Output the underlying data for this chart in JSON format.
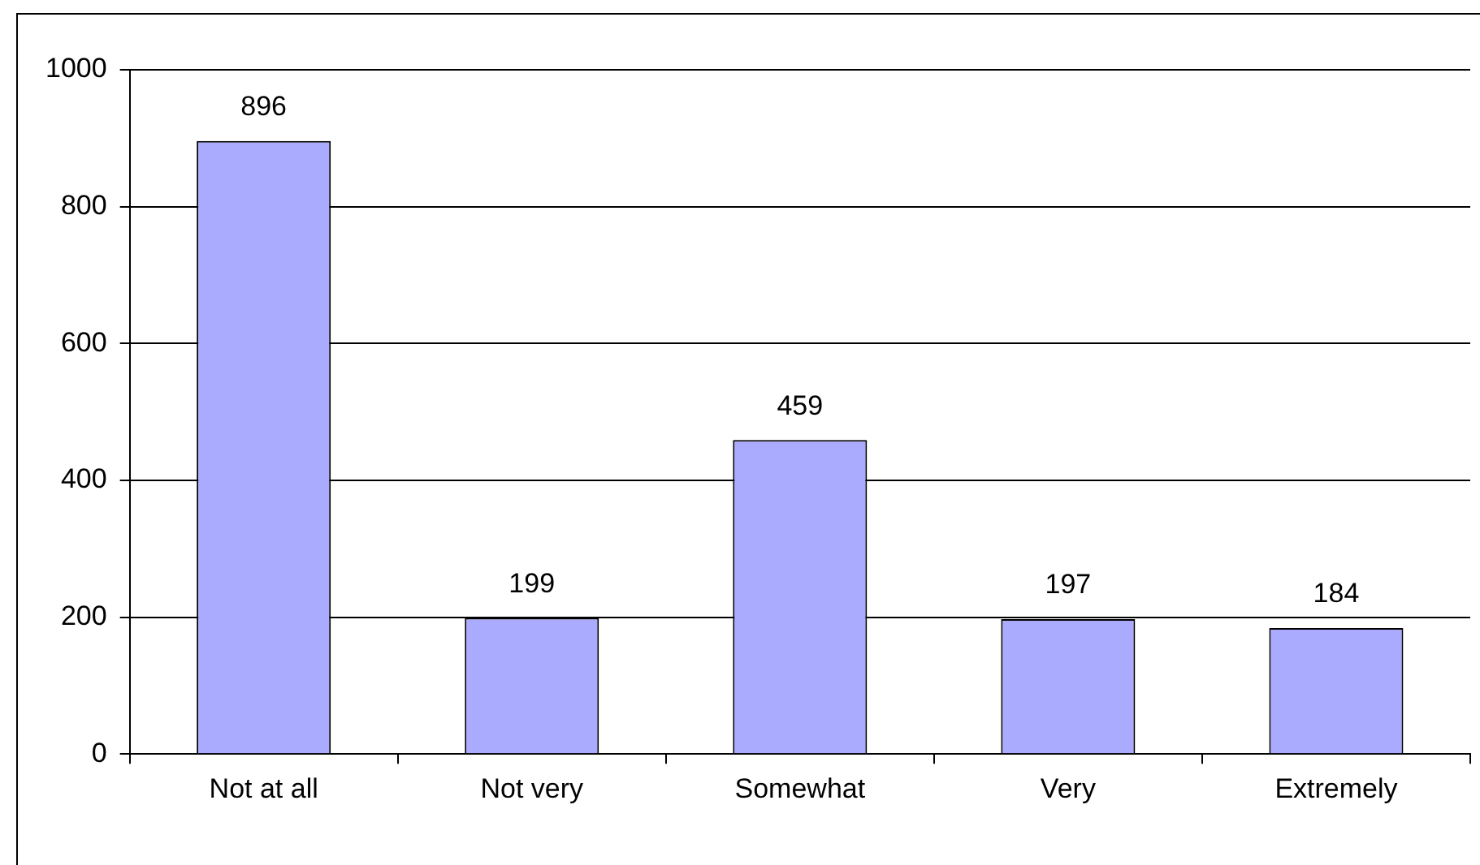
{
  "chart_data": {
    "type": "bar",
    "categories": [
      "Not at all",
      "Not very",
      "Somewhat",
      "Very",
      "Extremely"
    ],
    "values": [
      896,
      199,
      459,
      197,
      184
    ],
    "color": "#aaaaff",
    "ylim": [
      0,
      1000
    ],
    "yticks": [
      0,
      200,
      400,
      600,
      800,
      1000
    ],
    "grid": "y",
    "legend": false,
    "data_labels": true
  }
}
